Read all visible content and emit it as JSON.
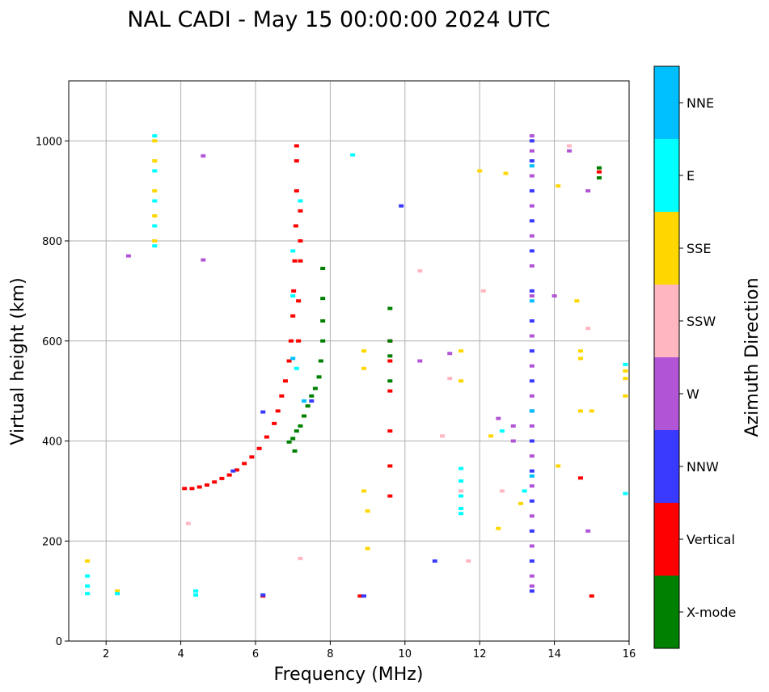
{
  "chart_data": {
    "type": "scatter",
    "title": "NAL CADI - May 15 00:00:00 2024 UTC",
    "xlabel": "Frequency (MHz)",
    "ylabel": "Virtual height (km)",
    "xlim": [
      1,
      16
    ],
    "ylim": [
      0,
      1120
    ],
    "xticks": [
      "2",
      "4",
      "6",
      "8",
      "10",
      "12",
      "14",
      "16"
    ],
    "yticks": [
      "0",
      "200",
      "400",
      "600",
      "800",
      "1000"
    ],
    "grid": true,
    "colorbar": {
      "label": "Azimuth Direction",
      "categories": [
        {
          "name": "X-mode",
          "color": "#008000"
        },
        {
          "name": "Vertical",
          "color": "#ff0000"
        },
        {
          "name": "NNW",
          "color": "#3a3aff"
        },
        {
          "name": "W",
          "color": "#b155d6"
        },
        {
          "name": "SSW",
          "color": "#ffb6c1"
        },
        {
          "name": "SSE",
          "color": "#ffd700"
        },
        {
          "name": "E",
          "color": "#00ffff"
        },
        {
          "name": "NNE",
          "color": "#00bfff"
        }
      ]
    },
    "series": [
      {
        "name": "Vertical",
        "points": [
          [
            4.1,
            305
          ],
          [
            4.3,
            305
          ],
          [
            4.5,
            308
          ],
          [
            4.7,
            312
          ],
          [
            4.9,
            318
          ],
          [
            5.1,
            325
          ],
          [
            5.3,
            332
          ],
          [
            5.5,
            342
          ],
          [
            5.7,
            355
          ],
          [
            5.9,
            368
          ],
          [
            6.1,
            385
          ],
          [
            6.3,
            408
          ],
          [
            6.5,
            435
          ],
          [
            6.6,
            460
          ],
          [
            6.7,
            490
          ],
          [
            6.8,
            520
          ],
          [
            6.9,
            560
          ],
          [
            6.95,
            600
          ],
          [
            7.0,
            650
          ],
          [
            7.02,
            700
          ],
          [
            7.05,
            760
          ],
          [
            7.08,
            830
          ],
          [
            7.1,
            900
          ],
          [
            7.1,
            960
          ],
          [
            7.1,
            990
          ],
          [
            7.2,
            860
          ],
          [
            7.2,
            800
          ],
          [
            7.2,
            760
          ],
          [
            7.15,
            680
          ],
          [
            7.15,
            600
          ],
          [
            9.6,
            600
          ],
          [
            9.6,
            560
          ],
          [
            9.6,
            500
          ],
          [
            9.6,
            420
          ],
          [
            9.6,
            350
          ],
          [
            9.6,
            290
          ],
          [
            15.2,
            938
          ],
          [
            14.7,
            326
          ],
          [
            15.0,
            90
          ],
          [
            6.2,
            90
          ],
          [
            8.8,
            90
          ]
        ]
      },
      {
        "name": "X-mode",
        "points": [
          [
            6.9,
            398
          ],
          [
            7.0,
            405
          ],
          [
            7.1,
            420
          ],
          [
            7.2,
            430
          ],
          [
            7.3,
            450
          ],
          [
            7.4,
            470
          ],
          [
            7.5,
            490
          ],
          [
            7.6,
            505
          ],
          [
            7.7,
            528
          ],
          [
            7.75,
            560
          ],
          [
            7.8,
            600
          ],
          [
            7.8,
            640
          ],
          [
            7.8,
            685
          ],
          [
            7.8,
            745
          ],
          [
            9.6,
            665
          ],
          [
            9.6,
            600
          ],
          [
            9.6,
            570
          ],
          [
            9.6,
            520
          ],
          [
            15.2,
            946
          ],
          [
            15.2,
            926
          ],
          [
            7.05,
            380
          ]
        ]
      },
      {
        "name": "NNW",
        "points": [
          [
            5.4,
            340
          ],
          [
            6.2,
            458
          ],
          [
            7.5,
            480
          ],
          [
            9.9,
            870
          ],
          [
            8.9,
            90
          ],
          [
            6.2,
            92
          ],
          [
            10.8,
            160
          ],
          [
            13.4,
            1000
          ],
          [
            13.4,
            960
          ],
          [
            13.4,
            900
          ],
          [
            13.4,
            840
          ],
          [
            13.4,
            780
          ],
          [
            13.4,
            700
          ],
          [
            13.4,
            640
          ],
          [
            13.4,
            580
          ],
          [
            13.4,
            520
          ],
          [
            13.4,
            460
          ],
          [
            13.4,
            400
          ],
          [
            13.4,
            340
          ],
          [
            13.4,
            280
          ],
          [
            13.4,
            220
          ],
          [
            13.4,
            160
          ],
          [
            13.4,
            100
          ]
        ]
      },
      {
        "name": "W",
        "points": [
          [
            4.6,
            970
          ],
          [
            4.6,
            762
          ],
          [
            2.6,
            770
          ],
          [
            13.4,
            1010
          ],
          [
            13.4,
            980
          ],
          [
            13.4,
            930
          ],
          [
            13.4,
            870
          ],
          [
            13.4,
            810
          ],
          [
            13.4,
            750
          ],
          [
            13.4,
            690
          ],
          [
            13.4,
            610
          ],
          [
            13.4,
            550
          ],
          [
            13.4,
            490
          ],
          [
            13.4,
            430
          ],
          [
            13.4,
            370
          ],
          [
            13.4,
            310
          ],
          [
            13.4,
            250
          ],
          [
            13.4,
            190
          ],
          [
            13.4,
            130
          ],
          [
            13.4,
            110
          ],
          [
            12.9,
            430
          ],
          [
            12.9,
            400
          ],
          [
            14.0,
            690
          ],
          [
            14.4,
            980
          ],
          [
            14.9,
            900
          ],
          [
            14.9,
            220
          ],
          [
            12.5,
            445
          ],
          [
            10.4,
            560
          ],
          [
            11.2,
            575
          ]
        ]
      },
      {
        "name": "SSW",
        "points": [
          [
            4.2,
            235
          ],
          [
            10.4,
            740
          ],
          [
            11.2,
            525
          ],
          [
            11.7,
            160
          ],
          [
            12.1,
            700
          ],
          [
            14.9,
            625
          ],
          [
            7.2,
            165
          ],
          [
            14.4,
            990
          ],
          [
            11.0,
            410
          ],
          [
            12.6,
            300
          ],
          [
            11.5,
            300
          ]
        ]
      },
      {
        "name": "SSE",
        "points": [
          [
            3.3,
            1000
          ],
          [
            3.3,
            960
          ],
          [
            3.3,
            900
          ],
          [
            3.3,
            850
          ],
          [
            3.3,
            800
          ],
          [
            1.5,
            160
          ],
          [
            2.3,
            100
          ],
          [
            8.9,
            300
          ],
          [
            8.9,
            580
          ],
          [
            8.9,
            545
          ],
          [
            9.0,
            260
          ],
          [
            12.0,
            940
          ],
          [
            12.7,
            935
          ],
          [
            14.1,
            910
          ],
          [
            14.6,
            680
          ],
          [
            14.7,
            460
          ],
          [
            15.0,
            460
          ],
          [
            15.9,
            540
          ],
          [
            15.9,
            525
          ],
          [
            15.9,
            490
          ],
          [
            13.1,
            275
          ],
          [
            14.1,
            350
          ],
          [
            12.5,
            225
          ],
          [
            11.5,
            580
          ],
          [
            11.5,
            520
          ],
          [
            14.7,
            580
          ],
          [
            14.7,
            565
          ],
          [
            12.3,
            410
          ],
          [
            9.0,
            185
          ]
        ]
      },
      {
        "name": "E",
        "points": [
          [
            3.3,
            1010
          ],
          [
            3.3,
            940
          ],
          [
            3.3,
            880
          ],
          [
            3.3,
            830
          ],
          [
            3.3,
            790
          ],
          [
            1.5,
            130
          ],
          [
            1.5,
            110
          ],
          [
            1.5,
            95
          ],
          [
            2.3,
            95
          ],
          [
            4.4,
            100
          ],
          [
            4.4,
            92
          ],
          [
            11.5,
            345
          ],
          [
            11.5,
            320
          ],
          [
            11.5,
            290
          ],
          [
            11.5,
            265
          ],
          [
            11.5,
            255
          ],
          [
            15.9,
            295
          ],
          [
            8.6,
            972
          ],
          [
            7.0,
            780
          ],
          [
            7.0,
            690
          ],
          [
            7.1,
            545
          ],
          [
            7.2,
            880
          ],
          [
            12.6,
            420
          ],
          [
            13.2,
            300
          ],
          [
            15.9,
            553
          ]
        ]
      },
      {
        "name": "NNE",
        "points": [
          [
            13.4,
            950
          ],
          [
            13.4,
            680
          ],
          [
            13.4,
            460
          ],
          [
            13.4,
            330
          ],
          [
            7.3,
            480
          ],
          [
            7.0,
            565
          ]
        ]
      }
    ]
  }
}
